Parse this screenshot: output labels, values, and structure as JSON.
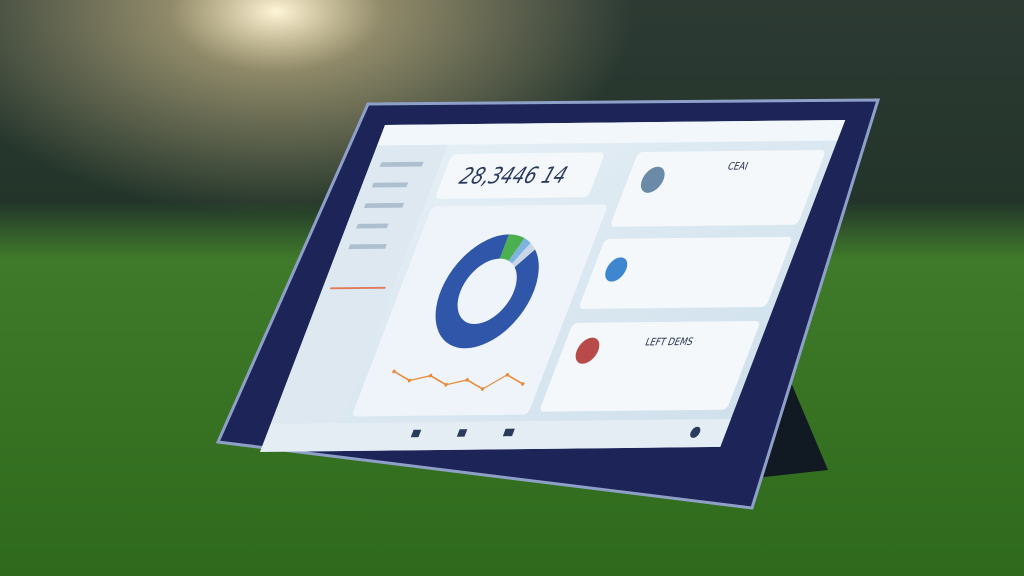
{
  "screen": {
    "big_number": "28,3446 14",
    "cards": [
      {
        "title": "CEAI"
      },
      {
        "title": "LEFT DEMS"
      }
    ],
    "donut": {
      "values": [
        88,
        6,
        3,
        3
      ],
      "colors": [
        "#2f56a8",
        "#4caf50",
        "#7fb3e0",
        "#c9d6e6"
      ]
    },
    "trend": {
      "values": [
        7,
        5,
        6,
        4,
        5,
        3,
        6,
        4
      ],
      "ylim": [
        0,
        10
      ],
      "color": "#e8893a"
    }
  }
}
